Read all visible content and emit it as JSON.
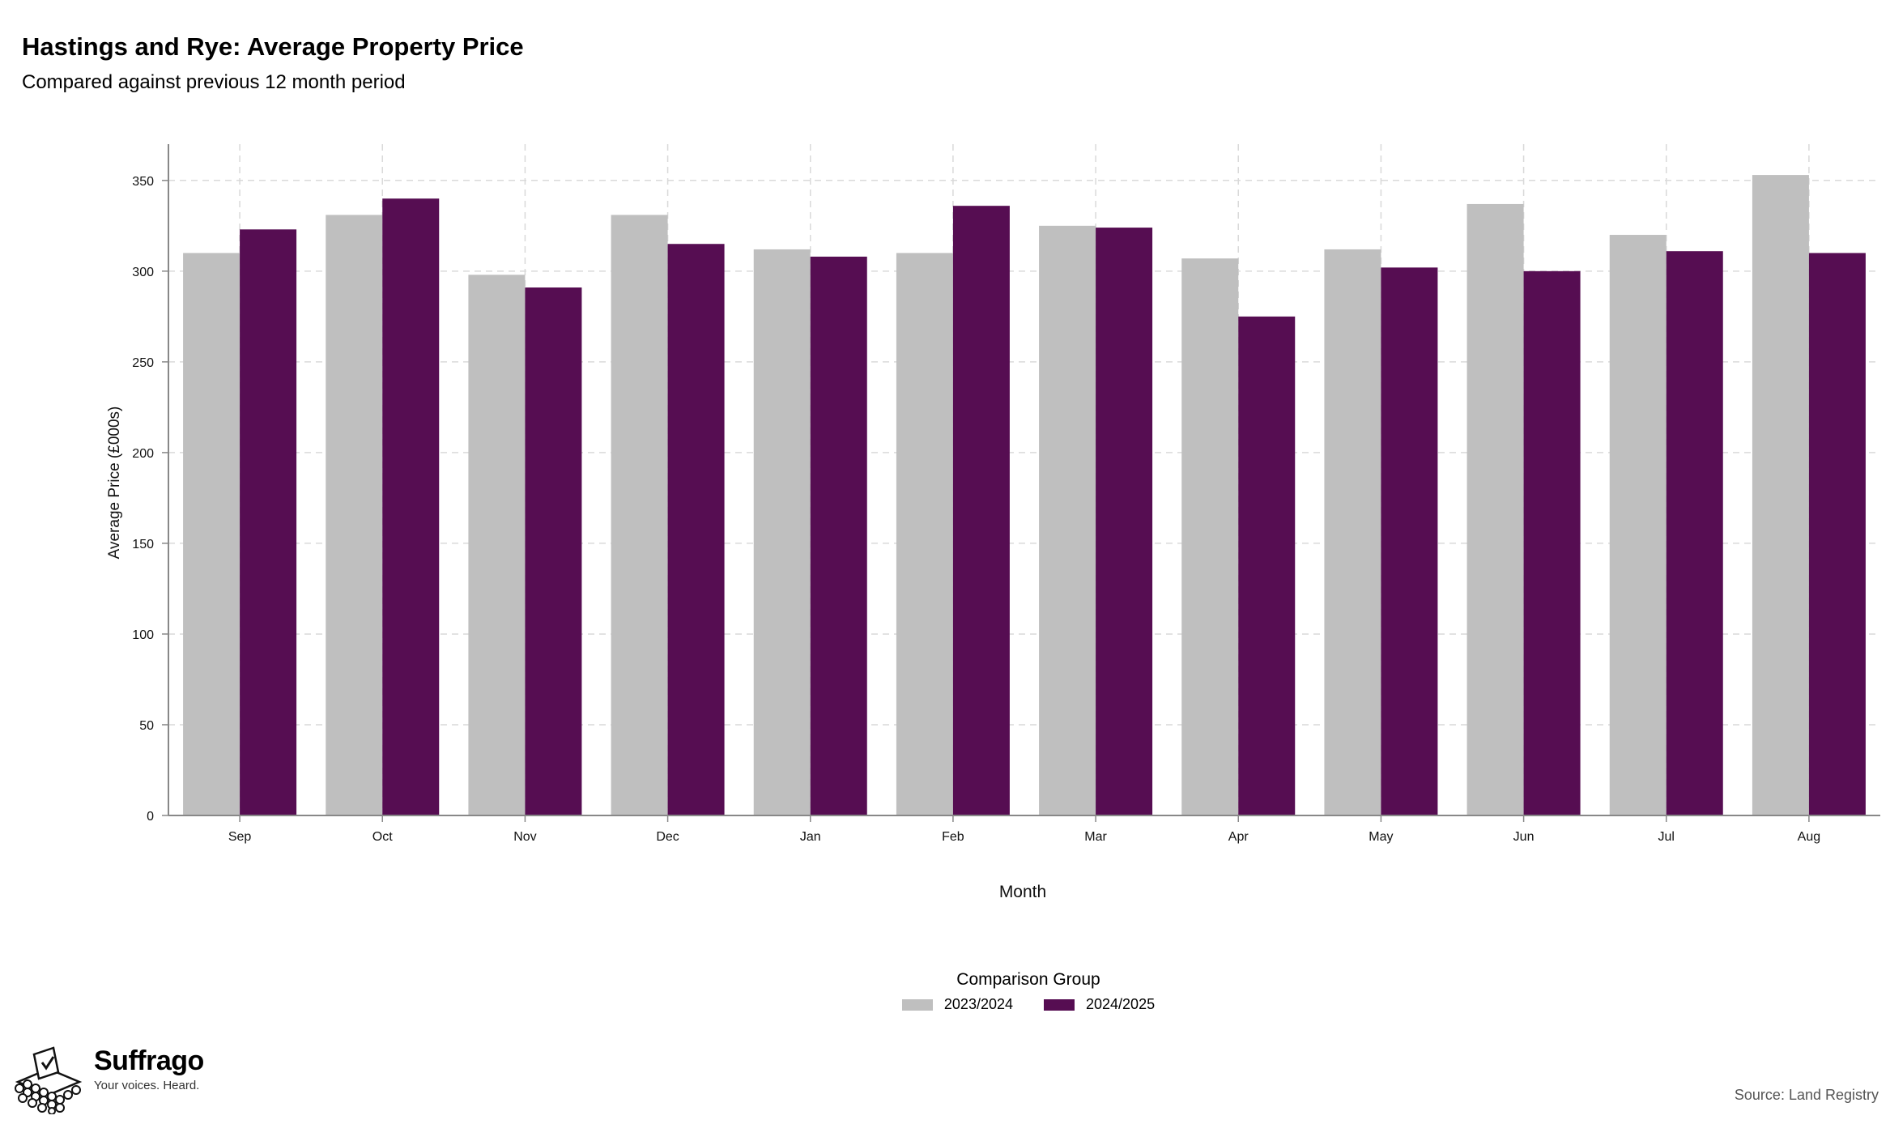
{
  "title": "Hastings and Rye: Average Property Price",
  "subtitle": "Compared against previous 12 month period",
  "chart_data": {
    "type": "bar",
    "categories": [
      "Sep",
      "Oct",
      "Nov",
      "Dec",
      "Jan",
      "Feb",
      "Mar",
      "Apr",
      "May",
      "Jun",
      "Jul",
      "Aug"
    ],
    "series": [
      {
        "name": "2023/2024",
        "color": "#bfbfbf",
        "values": [
          310,
          331,
          298,
          331,
          312,
          310,
          325,
          307,
          312,
          337,
          320,
          353
        ]
      },
      {
        "name": "2024/2025",
        "color": "#560d52",
        "values": [
          323,
          340,
          291,
          315,
          308,
          336,
          324,
          275,
          302,
          300,
          311,
          310
        ]
      }
    ],
    "xlabel": "Month",
    "ylabel": "Average Price (£000s)",
    "ylim": [
      0,
      370
    ],
    "yticks": [
      0,
      50,
      100,
      150,
      200,
      250,
      300,
      350
    ],
    "grid": true,
    "legend_title": "Comparison Group",
    "legend_position": "bottom"
  },
  "brand": {
    "name": "Suffrago",
    "tagline": "Your voices. Heard.",
    "logo_icon": "ballot-box-icon"
  },
  "source": "Source: Land Registry"
}
